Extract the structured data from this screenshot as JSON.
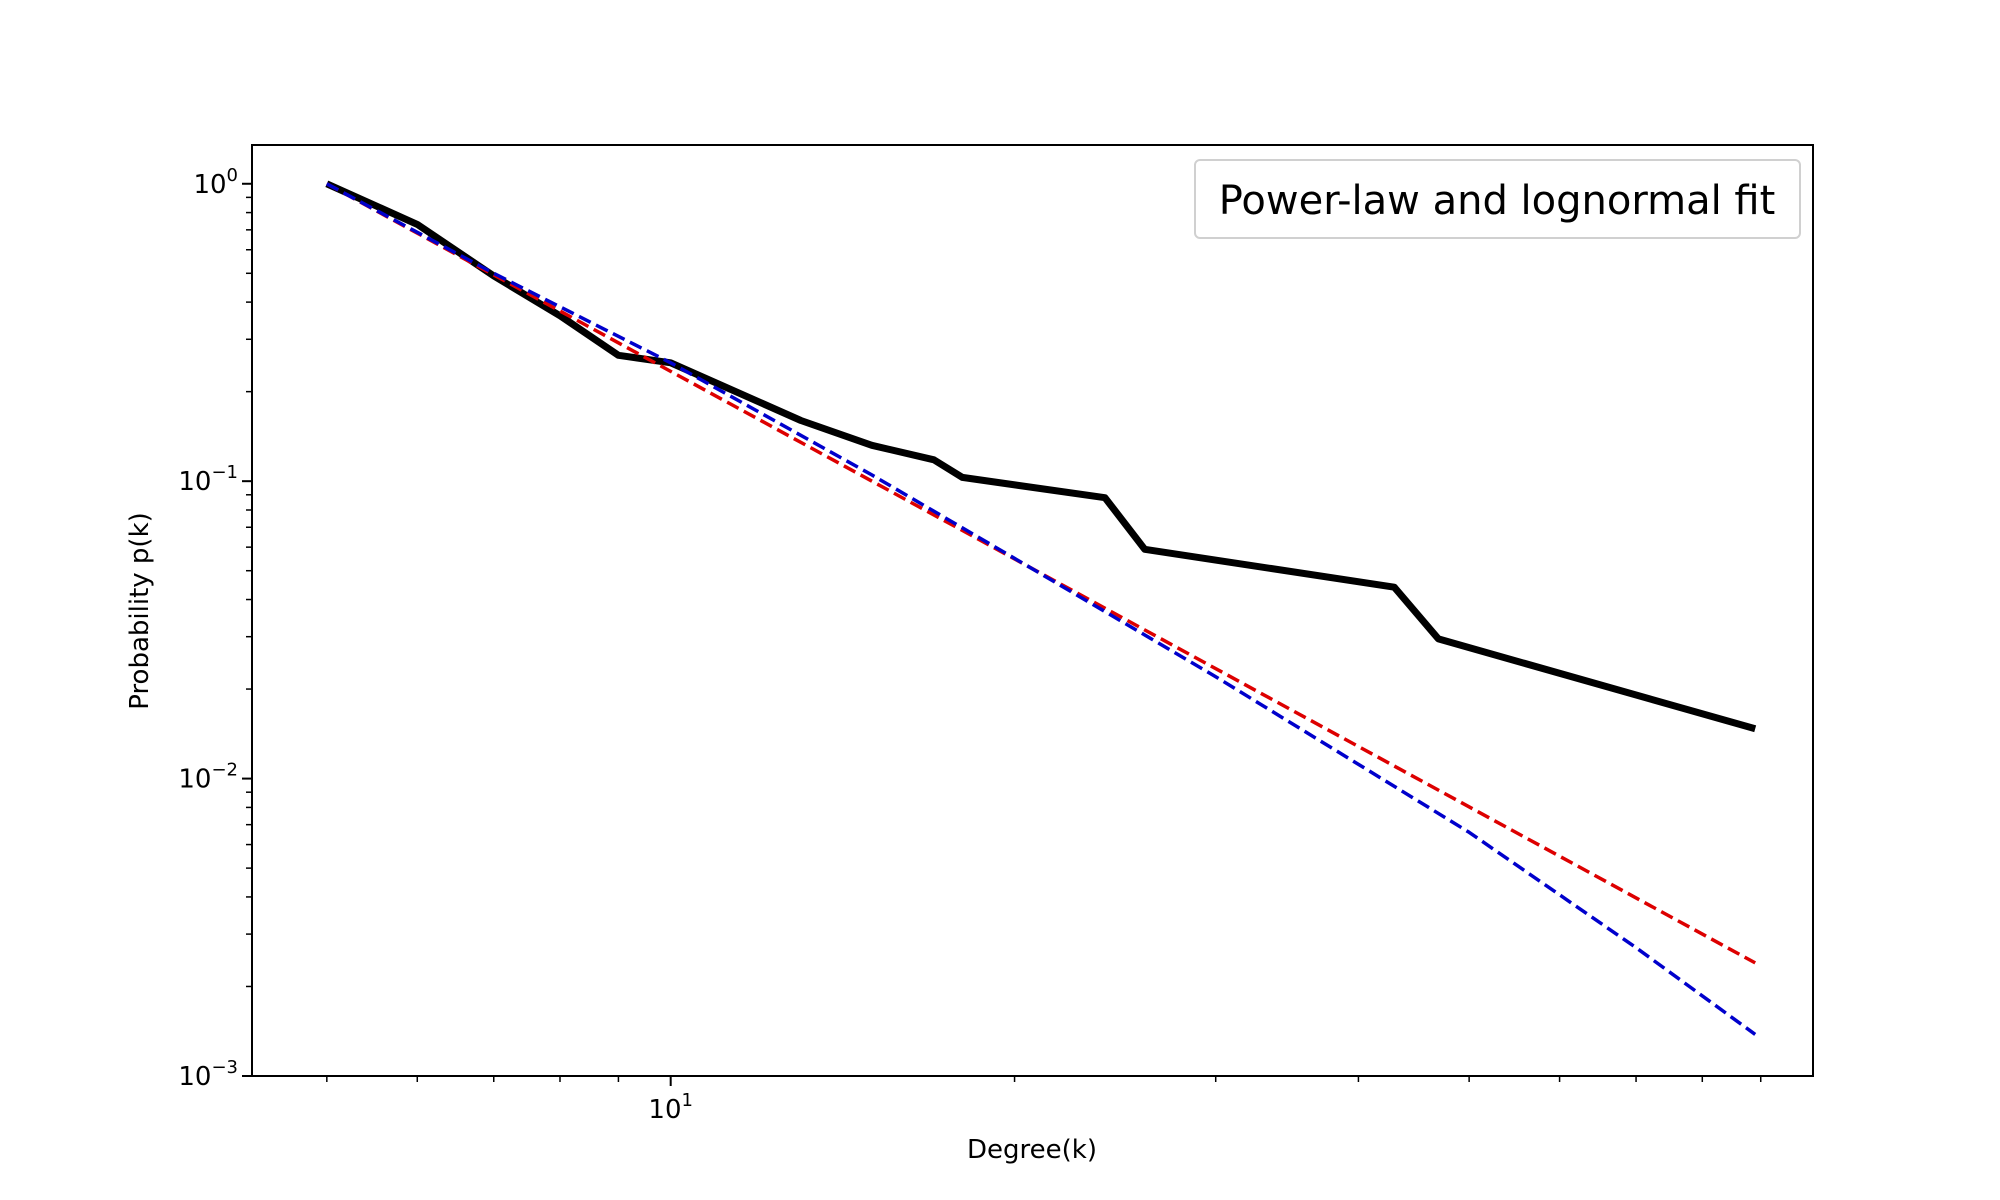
{
  "chart_data": {
    "type": "line",
    "xlabel": "Degree(k)",
    "ylabel": "Probability p(k)",
    "xscale": "log",
    "yscale": "log",
    "xlim": [
      4.3,
      100
    ],
    "ylim": [
      0.001,
      1.35
    ],
    "x_major_ticks": [
      {
        "value": 10,
        "base": "10",
        "exp": "1"
      }
    ],
    "x_minor_ticks": [
      5,
      6,
      7,
      8,
      9,
      20,
      30,
      40,
      50,
      60,
      70,
      80,
      90
    ],
    "y_major_ticks": [
      {
        "value": 1,
        "base": "10",
        "exp": "0"
      },
      {
        "value": 0.1,
        "base": "10",
        "exp": "−1"
      },
      {
        "value": 0.01,
        "base": "10",
        "exp": "−2"
      },
      {
        "value": 0.001,
        "base": "10",
        "exp": "−3"
      }
    ],
    "y_minor_ticks": [
      0.002,
      0.003,
      0.004,
      0.005,
      0.006,
      0.007,
      0.008,
      0.009,
      0.02,
      0.03,
      0.04,
      0.05,
      0.06,
      0.07,
      0.08,
      0.09,
      0.2,
      0.3,
      0.4,
      0.5,
      0.6,
      0.7,
      0.8,
      0.9
    ],
    "legend": {
      "title": "Power-law and lognormal fit",
      "position": "upper right"
    },
    "grid": false,
    "series": [
      {
        "color": "#000000",
        "style": "solid",
        "x": [
          5,
          6,
          7,
          8,
          9,
          10,
          13,
          15,
          17,
          18,
          24,
          26,
          43,
          47,
          89
        ],
        "y": [
          1.0,
          0.73,
          0.49,
          0.36,
          0.265,
          0.25,
          0.16,
          0.132,
          0.118,
          0.103,
          0.088,
          0.059,
          0.044,
          0.0295,
          0.0147
        ]
      },
      {
        "color": "#dd0000",
        "style": "dashed",
        "x": [
          5,
          89
        ],
        "y": [
          1.0,
          0.0024
        ]
      },
      {
        "color": "#0000cc",
        "style": "dashed",
        "x": [
          5,
          7,
          10,
          15,
          20,
          30,
          50,
          70,
          89
        ],
        "y": [
          1.0,
          0.5,
          0.25,
          0.105,
          0.055,
          0.022,
          0.0066,
          0.0027,
          0.00138
        ]
      }
    ]
  }
}
